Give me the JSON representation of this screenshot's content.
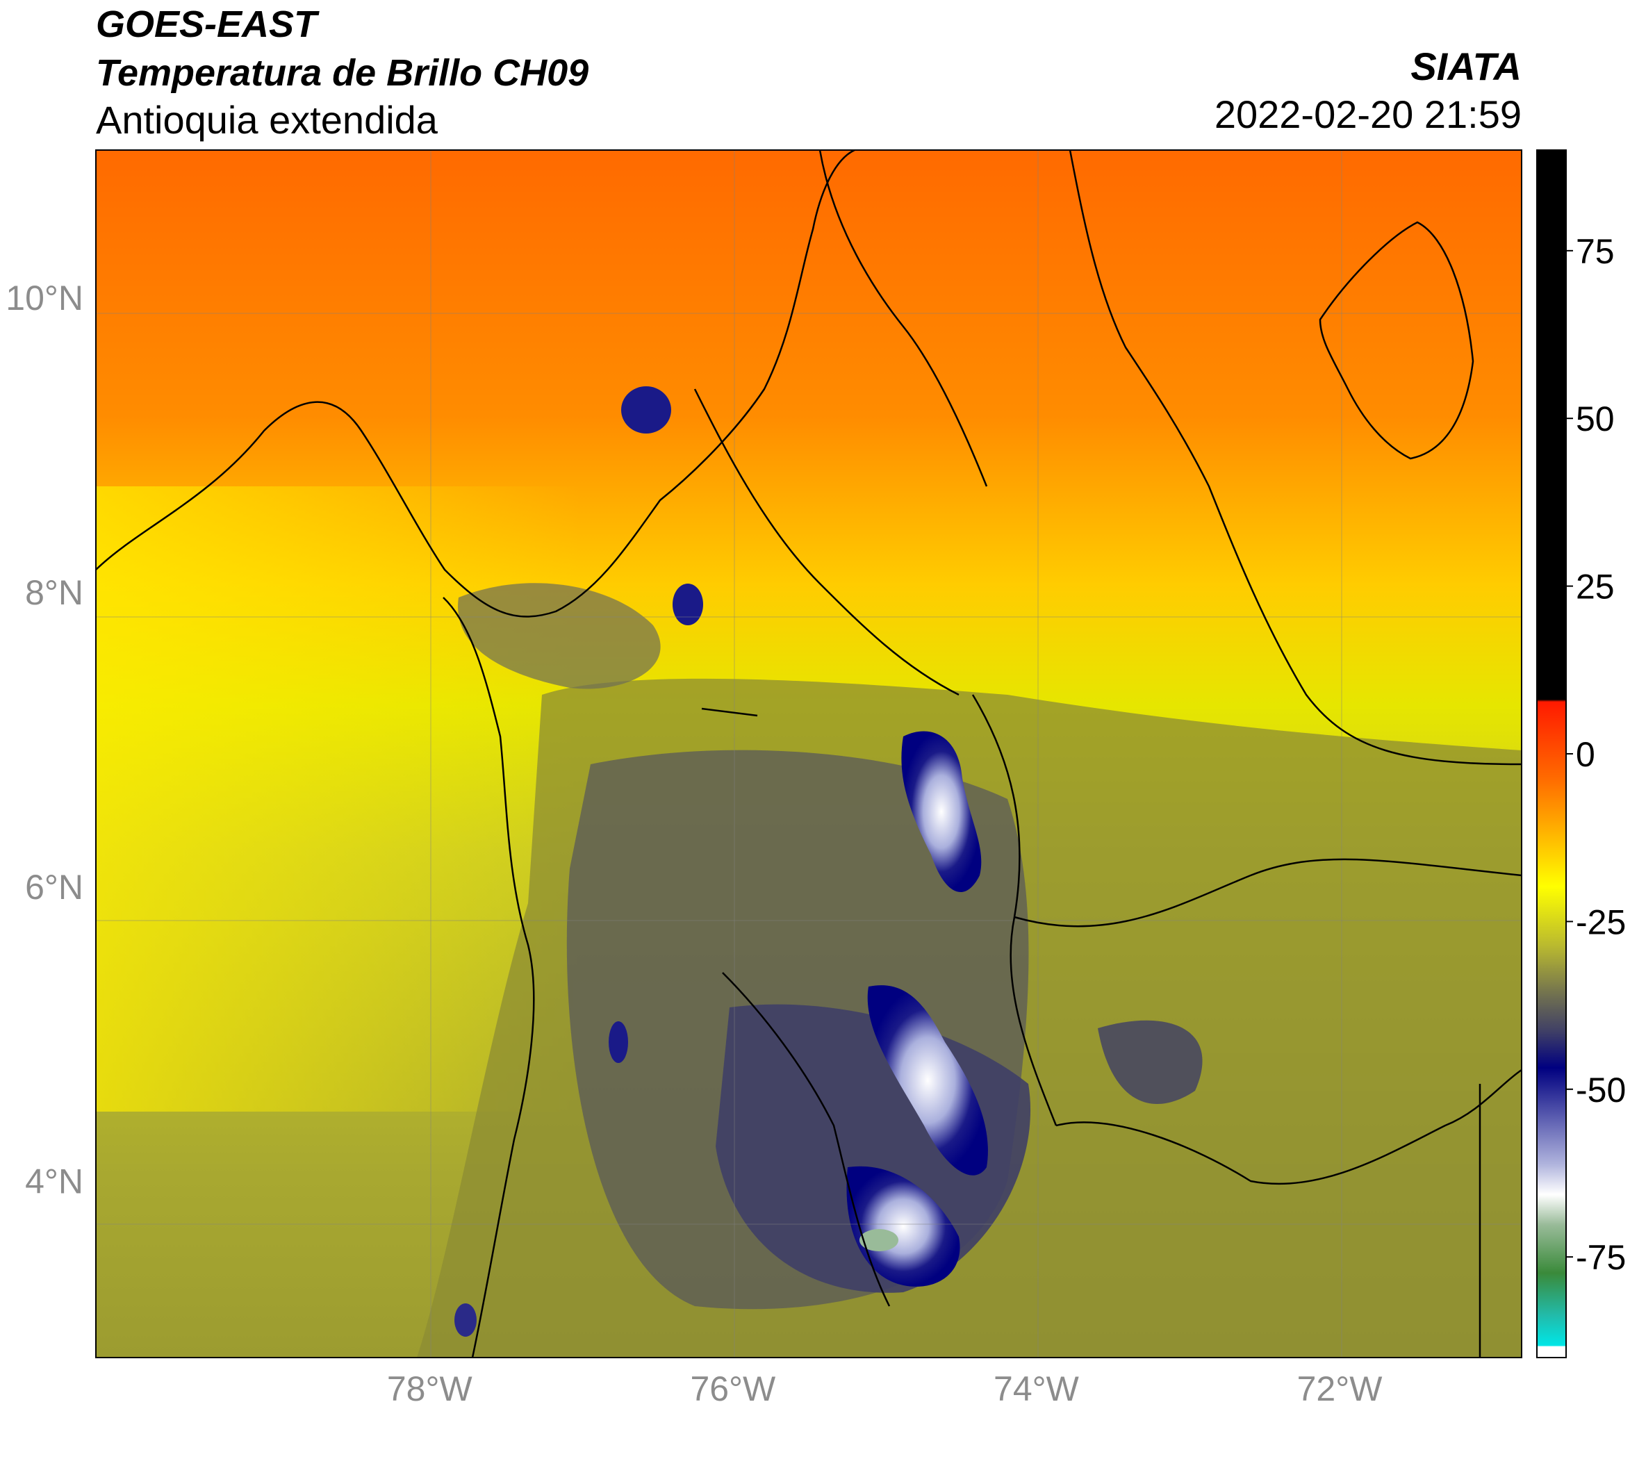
{
  "header": {
    "line1": "GOES-EAST",
    "line2": "Temperatura de Brillo CH09",
    "line3": "Antioquia extendida",
    "agency": "SIATA",
    "datetime": "2022-02-20 21:59"
  },
  "map": {
    "lat_ticks": [
      "10°N",
      "8°N",
      "6°N",
      "4°N"
    ],
    "lon_ticks": [
      "78°W",
      "76°W",
      "74°W",
      "72°W"
    ],
    "lat_values": [
      10,
      8,
      6,
      4
    ],
    "lon_values": [
      -78,
      -76,
      -74,
      -72
    ],
    "extent": {
      "lon_min": -80.2,
      "lon_max": -70.8,
      "lat_min": 2.8,
      "lat_max": 11.0
    }
  },
  "colorbar": {
    "ticks": [
      "75",
      "50",
      "25",
      "0",
      "-25",
      "-50",
      "-75"
    ],
    "tick_values": [
      75,
      50,
      25,
      0,
      -25,
      -50,
      -75
    ],
    "min": -90,
    "max": 90,
    "colors": {
      "black": "#000000",
      "red": "#ff1a00",
      "orange": "#ff6a00",
      "yellow": "#ffff00",
      "olive": "#8c8c33",
      "slate": "#3f3f66",
      "navy": "#000080",
      "white": "#ffffff",
      "green": "#3a8a3a",
      "cyan": "#00e6e6"
    }
  }
}
